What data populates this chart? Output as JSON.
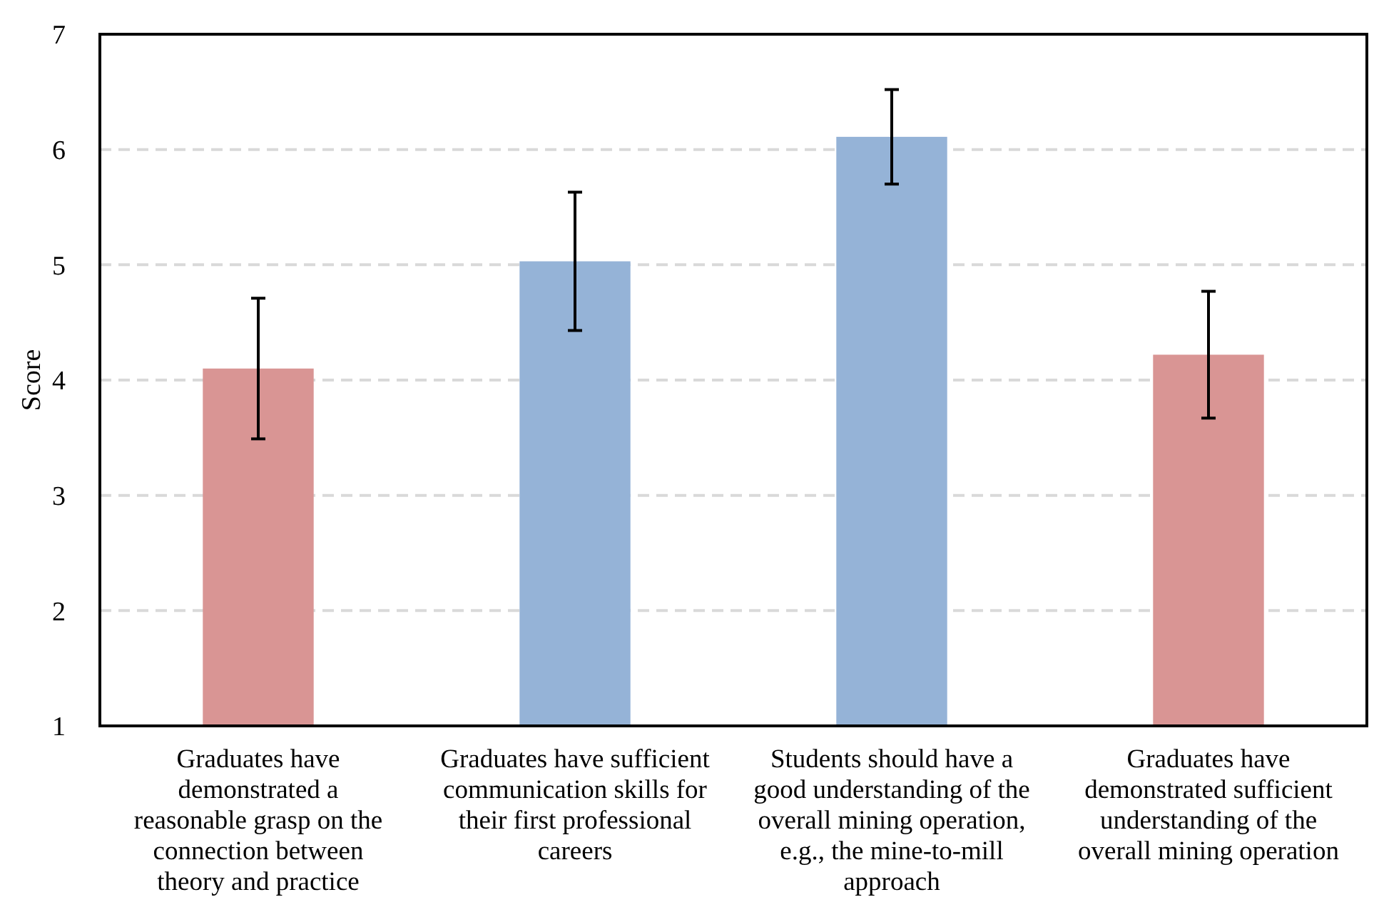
{
  "chart_data": {
    "type": "bar",
    "ylabel": "Score",
    "categories": [
      "Graduates have demonstrated a reasonable grasp on the connection between theory and practice",
      "Graduates have sufficient communication skills for their first professional careers",
      "Students should have a good understanding of the overall mining operation, e.g., the mine-to-mill approach",
      "Graduates have demonstrated sufficient understanding of the overall mining operation"
    ],
    "values": [
      4.1,
      5.03,
      6.11,
      4.22
    ],
    "errors": [
      0.61,
      0.6,
      0.41,
      0.55
    ],
    "colors": [
      "#d99594",
      "#95b3d7",
      "#95b3d7",
      "#d99594"
    ],
    "ylim": [
      1,
      7
    ],
    "yticks": [
      1,
      2,
      3,
      4,
      5,
      6,
      7
    ],
    "grid": "y"
  }
}
